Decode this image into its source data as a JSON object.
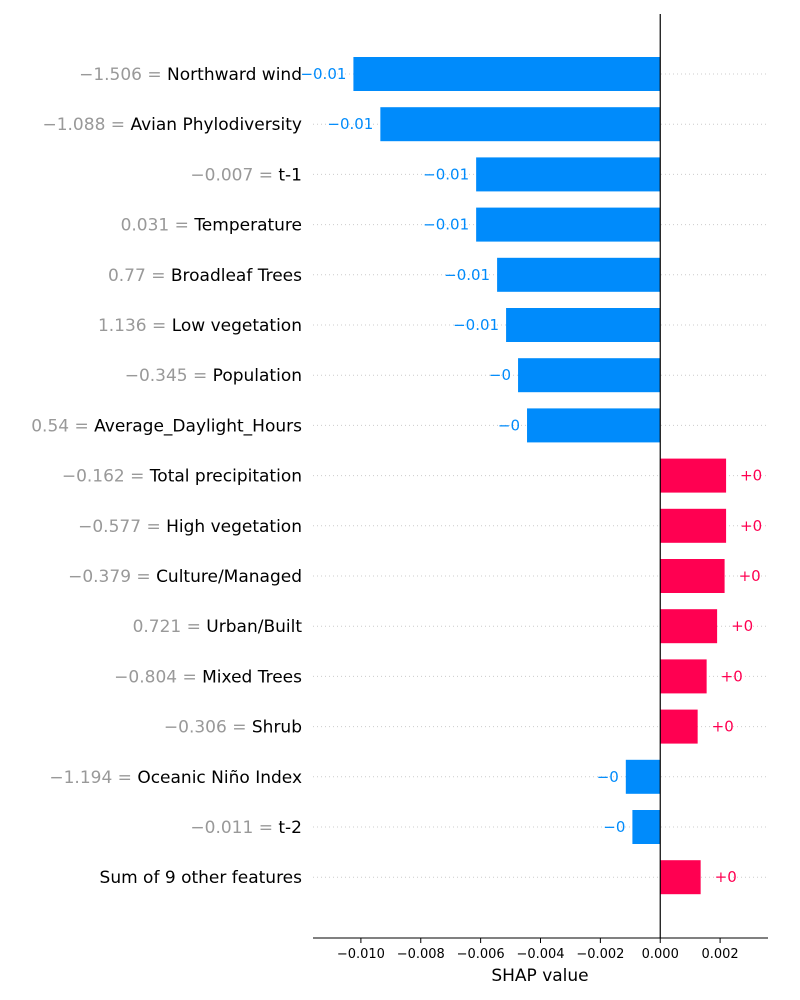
{
  "chart_data": {
    "type": "bar",
    "orientation": "horizontal",
    "xlabel": "SHAP value",
    "xlim": [
      -0.0116,
      0.0036
    ],
    "x_ticks": [
      {
        "value": -0.01,
        "label": "−0.010"
      },
      {
        "value": -0.008,
        "label": "−0.008"
      },
      {
        "value": -0.006,
        "label": "−0.006"
      },
      {
        "value": -0.004,
        "label": "−0.004"
      },
      {
        "value": -0.002,
        "label": "−0.002"
      },
      {
        "value": 0.0,
        "label": "0.000"
      },
      {
        "value": 0.002,
        "label": "0.002"
      }
    ],
    "grid": "horizontal dotted per feature",
    "colors": {
      "positive": "#ff0051",
      "negative": "#008bfb",
      "feature_value": "#999999"
    },
    "features": [
      {
        "value_text": "−1.506 = ",
        "name": "Northward wind",
        "shap": -0.01025,
        "label": "−0.01"
      },
      {
        "value_text": "−1.088 = ",
        "name": "Avian Phylodiversity",
        "shap": -0.00935,
        "label": "−0.01"
      },
      {
        "value_text": "−0.007 = ",
        "name": "t-1",
        "shap": -0.00615,
        "label": "−0.01"
      },
      {
        "value_text": "0.031 = ",
        "name": "Temperature",
        "shap": -0.00615,
        "label": "−0.01"
      },
      {
        "value_text": "0.77 = ",
        "name": "Broadleaf Trees",
        "shap": -0.00545,
        "label": "−0.01"
      },
      {
        "value_text": "1.136 = ",
        "name": "Low vegetation",
        "shap": -0.00515,
        "label": "−0.01"
      },
      {
        "value_text": "−0.345 = ",
        "name": "Population",
        "shap": -0.00475,
        "label": "−0"
      },
      {
        "value_text": "0.54 = ",
        "name": "Average_Daylight_Hours",
        "shap": -0.00445,
        "label": "−0"
      },
      {
        "value_text": "−0.162 = ",
        "name": "Total precipitation",
        "shap": 0.0022,
        "label": "+0"
      },
      {
        "value_text": "−0.577 = ",
        "name": "High vegetation",
        "shap": 0.0022,
        "label": "+0"
      },
      {
        "value_text": "−0.379 = ",
        "name": "Culture/Managed",
        "shap": 0.00215,
        "label": "+0"
      },
      {
        "value_text": "0.721 = ",
        "name": "Urban/Built",
        "shap": 0.0019,
        "label": "+0"
      },
      {
        "value_text": "−0.804 = ",
        "name": "Mixed Trees",
        "shap": 0.00155,
        "label": "+0"
      },
      {
        "value_text": "−0.306 = ",
        "name": "Shrub",
        "shap": 0.00125,
        "label": "+0"
      },
      {
        "value_text": "−1.194 = ",
        "name": "Oceanic Niño Index",
        "shap": -0.00115,
        "label": "−0"
      },
      {
        "value_text": "−0.011 = ",
        "name": "t-2",
        "shap": -0.00093,
        "label": "−0"
      },
      {
        "value_text": "",
        "name": "Sum of 9 other features",
        "shap": 0.00135,
        "label": "+0"
      }
    ]
  }
}
